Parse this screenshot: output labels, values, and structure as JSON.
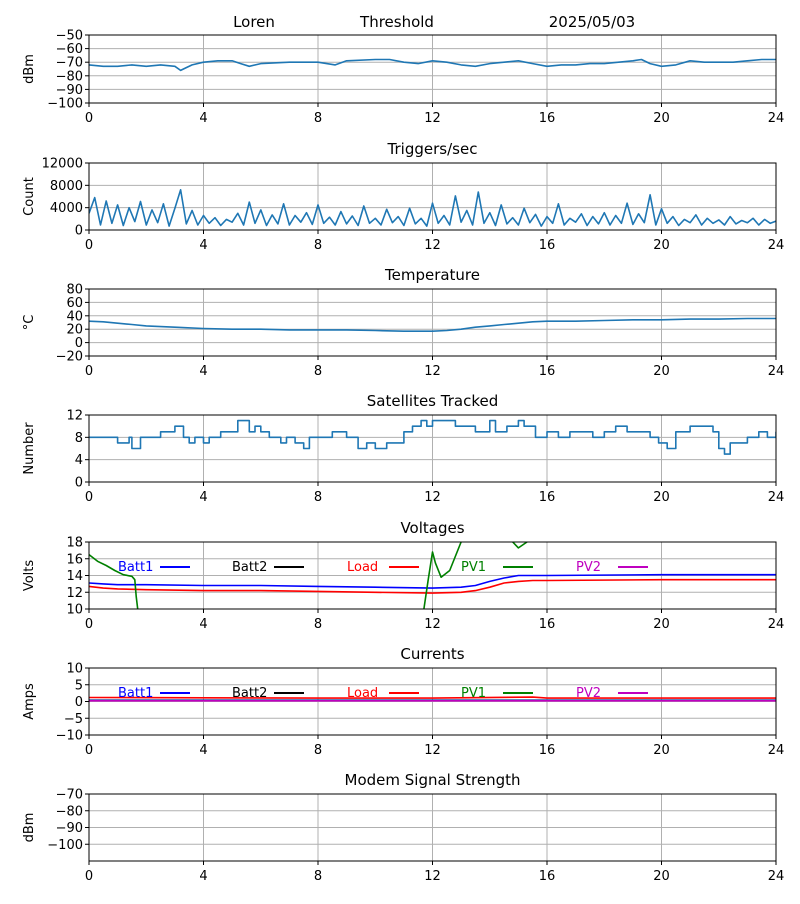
{
  "header": {
    "station": "Loren",
    "mode": "Threshold",
    "date": "2025/05/03"
  },
  "chart_data": [
    {
      "id": "rssi",
      "type": "line",
      "title": "",
      "ylabel": "dBm",
      "xlim": [
        0,
        24
      ],
      "ylim": [
        -100,
        -50
      ],
      "xticks": [
        0,
        4,
        8,
        12,
        16,
        20,
        24
      ],
      "yticks": [
        -100,
        -90,
        -80,
        -70,
        -60,
        -50
      ],
      "grid": true,
      "series": [
        {
          "color": "#1f77b4",
          "x": [
            0,
            0.5,
            1,
            1.5,
            2,
            2.5,
            3,
            3.2,
            3.4,
            3.6,
            4,
            4.5,
            5,
            5.3,
            5.6,
            6,
            7,
            8,
            8.6,
            9,
            10,
            10.5,
            11,
            11.5,
            12,
            12.5,
            13,
            13.5,
            14,
            14.5,
            15,
            15.5,
            16,
            16.5,
            17,
            17.5,
            18,
            18.5,
            19,
            19.3,
            19.6,
            20,
            20.5,
            21,
            21.5,
            22,
            22.5,
            23,
            23.5,
            24
          ],
          "y": [
            -72,
            -73,
            -73,
            -72,
            -73,
            -72,
            -73,
            -76,
            -74,
            -72,
            -70,
            -69,
            -69,
            -71,
            -73,
            -71,
            -70,
            -70,
            -72,
            -69,
            -68,
            -68,
            -70,
            -71,
            -69,
            -70,
            -72,
            -73,
            -71,
            -70,
            -69,
            -71,
            -73,
            -72,
            -72,
            -71,
            -71,
            -70,
            -69,
            -68,
            -71,
            -73,
            -72,
            -69,
            -70,
            -70,
            -70,
            -69,
            -68,
            -68
          ]
        }
      ]
    },
    {
      "id": "triggers",
      "type": "line",
      "title": "Triggers/sec",
      "ylabel": "Count",
      "xlim": [
        0,
        24
      ],
      "ylim": [
        0,
        12000
      ],
      "xticks": [
        0,
        4,
        8,
        12,
        16,
        20,
        24
      ],
      "yticks": [
        0,
        4000,
        8000,
        12000
      ],
      "grid": true,
      "series": [
        {
          "color": "#1f77b4",
          "x": [
            0,
            0.2,
            0.4,
            0.6,
            0.8,
            1.0,
            1.2,
            1.4,
            1.6,
            1.8,
            2.0,
            2.2,
            2.4,
            2.6,
            2.8,
            3.0,
            3.2,
            3.4,
            3.6,
            3.8,
            4.0,
            4.2,
            4.4,
            4.6,
            4.8,
            5.0,
            5.2,
            5.4,
            5.6,
            5.8,
            6.0,
            6.2,
            6.4,
            6.6,
            6.8,
            7.0,
            7.2,
            7.4,
            7.6,
            7.8,
            8.0,
            8.2,
            8.4,
            8.6,
            8.8,
            9.0,
            9.2,
            9.4,
            9.6,
            9.8,
            10.0,
            10.2,
            10.4,
            10.6,
            10.8,
            11.0,
            11.2,
            11.4,
            11.6,
            11.8,
            12.0,
            12.2,
            12.4,
            12.6,
            12.8,
            13.0,
            13.2,
            13.4,
            13.6,
            13.8,
            14.0,
            14.2,
            14.4,
            14.6,
            14.8,
            15.0,
            15.2,
            15.4,
            15.6,
            15.8,
            16.0,
            16.2,
            16.4,
            16.6,
            16.8,
            17.0,
            17.2,
            17.4,
            17.6,
            17.8,
            18.0,
            18.2,
            18.4,
            18.6,
            18.8,
            19.0,
            19.2,
            19.4,
            19.6,
            19.8,
            20.0,
            20.2,
            20.4,
            20.6,
            20.8,
            21.0,
            21.2,
            21.4,
            21.6,
            21.8,
            22.0,
            22.2,
            22.4,
            22.6,
            22.8,
            23.0,
            23.2,
            23.4,
            23.6,
            23.8,
            24.0
          ],
          "y": [
            3000,
            5800,
            900,
            5200,
            1200,
            4500,
            800,
            4000,
            1500,
            5100,
            900,
            3600,
            1300,
            4700,
            700,
            3900,
            7200,
            1100,
            3500,
            900,
            2600,
            1200,
            2200,
            800,
            1900,
            1400,
            3000,
            900,
            5000,
            1200,
            3600,
            800,
            2700,
            1100,
            4700,
            900,
            2600,
            1400,
            3100,
            1000,
            4500,
            1200,
            2300,
            900,
            3300,
            1100,
            2500,
            800,
            4300,
            1200,
            2100,
            900,
            3700,
            1300,
            2400,
            800,
            3900,
            1100,
            2100,
            700,
            4800,
            1200,
            2600,
            900,
            6100,
            1400,
            3500,
            900,
            6800,
            1200,
            3100,
            800,
            4500,
            1100,
            2200,
            900,
            3900,
            1300,
            2800,
            700,
            2400,
            1200,
            4700,
            900,
            2100,
            1400,
            2900,
            800,
            2400,
            1100,
            3100,
            900,
            2600,
            1200,
            4800,
            1000,
            2900,
            1300,
            6300,
            900,
            3800,
            1200,
            2400,
            800,
            1900,
            1300,
            2700,
            900,
            2100,
            1200,
            1800,
            900,
            2400,
            1100,
            1700,
            1300,
            2100,
            900,
            1900,
            1200,
            1600
          ]
        }
      ]
    },
    {
      "id": "temperature",
      "type": "line",
      "title": "Temperature",
      "ylabel": "°C",
      "xlim": [
        0,
        24
      ],
      "ylim": [
        -20,
        80
      ],
      "xticks": [
        0,
        4,
        8,
        12,
        16,
        20,
        24
      ],
      "yticks": [
        -20,
        0,
        20,
        40,
        60,
        80
      ],
      "grid": true,
      "series": [
        {
          "color": "#1f77b4",
          "x": [
            0,
            0.5,
            1,
            1.5,
            2,
            3,
            4,
            5,
            6,
            7,
            8,
            9,
            10,
            11,
            12,
            12.5,
            13,
            13.5,
            14,
            14.5,
            15,
            15.5,
            16,
            17,
            18,
            19,
            20,
            21,
            22,
            23,
            24
          ],
          "y": [
            32,
            31,
            29,
            27,
            25,
            23,
            21,
            20,
            20,
            19,
            19,
            19,
            18,
            17,
            17,
            18,
            20,
            23,
            25,
            27,
            29,
            31,
            32,
            32,
            33,
            34,
            34,
            35,
            35,
            36,
            36
          ]
        }
      ]
    },
    {
      "id": "satellites",
      "type": "line",
      "title": "Satellites Tracked",
      "ylabel": "Number",
      "xlim": [
        0,
        24
      ],
      "ylim": [
        0,
        12
      ],
      "xticks": [
        0,
        4,
        8,
        12,
        16,
        20,
        24
      ],
      "yticks": [
        0,
        4,
        8,
        12
      ],
      "grid": true,
      "series": [
        {
          "color": "#1f77b4",
          "step": true,
          "x": [
            0,
            0.5,
            1.0,
            1.3,
            1.4,
            1.5,
            1.8,
            2.2,
            2.5,
            2.8,
            3.0,
            3.3,
            3.5,
            3.7,
            4.0,
            4.2,
            4.6,
            5.0,
            5.2,
            5.6,
            5.8,
            6.0,
            6.3,
            6.7,
            6.9,
            7.2,
            7.5,
            7.7,
            8.0,
            8.5,
            9.0,
            9.4,
            9.7,
            10.0,
            10.4,
            10.8,
            11.0,
            11.3,
            11.6,
            11.8,
            12.0,
            12.5,
            12.8,
            13.0,
            13.5,
            14.0,
            14.2,
            14.6,
            15.0,
            15.2,
            15.6,
            16.0,
            16.4,
            16.8,
            17.2,
            17.6,
            18.0,
            18.4,
            18.8,
            19.2,
            19.6,
            19.9,
            20.2,
            20.5,
            21.0,
            21.4,
            21.8,
            22.0,
            22.2,
            22.4,
            22.6,
            23.0,
            23.4,
            23.7,
            24.0
          ],
          "y": [
            8,
            8,
            7,
            7,
            8,
            6,
            8,
            8,
            9,
            9,
            10,
            8,
            7,
            8,
            7,
            8,
            9,
            9,
            11,
            9,
            10,
            9,
            8,
            7,
            8,
            7,
            6,
            8,
            8,
            9,
            8,
            6,
            7,
            6,
            7,
            7,
            9,
            10,
            11,
            10,
            11,
            11,
            10,
            10,
            9,
            11,
            9,
            10,
            11,
            10,
            8,
            9,
            8,
            9,
            9,
            8,
            9,
            10,
            9,
            9,
            8,
            7,
            6,
            9,
            10,
            10,
            9,
            6,
            5,
            7,
            7,
            8,
            9,
            8,
            9
          ]
        }
      ]
    },
    {
      "id": "voltages",
      "type": "line",
      "title": "Voltages",
      "ylabel": "Volts",
      "xlim": [
        0,
        24
      ],
      "ylim": [
        10,
        18
      ],
      "xticks": [
        0,
        4,
        8,
        12,
        16,
        20,
        24
      ],
      "yticks": [
        10,
        12,
        14,
        16,
        18
      ],
      "grid": true,
      "legend": [
        "Batt1",
        "Batt2",
        "Load",
        "PV1",
        "PV2"
      ],
      "series": [
        {
          "name": "Batt1",
          "color": "#0000ff",
          "x": [
            0,
            0.5,
            1,
            2,
            4,
            6,
            8,
            10,
            12,
            13,
            13.5,
            14,
            14.5,
            15,
            16,
            20,
            24
          ],
          "y": [
            13.1,
            13.0,
            12.9,
            12.9,
            12.8,
            12.8,
            12.7,
            12.6,
            12.5,
            12.6,
            12.8,
            13.3,
            13.7,
            14.0,
            14.0,
            14.1,
            14.1
          ]
        },
        {
          "name": "Batt2",
          "color": "#000000",
          "x": [],
          "y": []
        },
        {
          "name": "Load",
          "color": "#ff0000",
          "x": [
            0,
            0.5,
            1,
            2,
            4,
            6,
            8,
            10,
            12,
            13,
            13.5,
            14,
            14.5,
            15,
            15.5,
            16,
            20,
            24
          ],
          "y": [
            12.7,
            12.5,
            12.4,
            12.3,
            12.2,
            12.2,
            12.1,
            12.0,
            11.9,
            12.0,
            12.2,
            12.6,
            13.1,
            13.3,
            13.4,
            13.4,
            13.5,
            13.5
          ]
        },
        {
          "name": "PV1",
          "color": "#008000",
          "segments": [
            {
              "x": [
                0,
                0.3,
                0.6,
                0.9,
                1.2,
                1.5,
                1.6,
                1.65,
                1.7
              ],
              "y": [
                16.5,
                15.7,
                15.2,
                14.6,
                14.1,
                13.9,
                13.5,
                11.5,
                10
              ]
            },
            {
              "x": [
                11.7,
                11.85,
                12.0,
                12.1,
                12.3,
                12.6,
                13.0
              ],
              "y": [
                10,
                13.5,
                16.8,
                15.5,
                13.8,
                14.6,
                18
              ]
            },
            {
              "x": [
                14.8,
                15.0,
                15.3
              ],
              "y": [
                18,
                17.3,
                18
              ]
            }
          ]
        },
        {
          "name": "PV2",
          "color": "#bf00bf",
          "x": [],
          "y": []
        }
      ]
    },
    {
      "id": "currents",
      "type": "line",
      "title": "Currents",
      "ylabel": "Amps",
      "xlim": [
        0,
        24
      ],
      "ylim": [
        -10,
        10
      ],
      "xticks": [
        0,
        4,
        8,
        12,
        16,
        20,
        24
      ],
      "yticks": [
        -10,
        -5,
        0,
        5,
        10
      ],
      "grid": true,
      "legend": [
        "Batt1",
        "Batt2",
        "Load",
        "PV1",
        "PV2"
      ],
      "series": [
        {
          "name": "Batt1",
          "color": "#0000ff",
          "x": [
            0,
            24
          ],
          "y": [
            0.4,
            0.4
          ]
        },
        {
          "name": "Batt2",
          "color": "#000000",
          "x": [],
          "y": []
        },
        {
          "name": "Load",
          "color": "#ff0000",
          "x": [
            0,
            4,
            8,
            12,
            15.5,
            16,
            20,
            24
          ],
          "y": [
            1.2,
            1.1,
            1.0,
            1.0,
            1.3,
            1.0,
            1.0,
            1.0
          ]
        },
        {
          "name": "PV1",
          "color": "#008000",
          "x": [
            0,
            24
          ],
          "y": [
            0.3,
            0.3
          ]
        },
        {
          "name": "PV2",
          "color": "#bf00bf",
          "x": [
            0,
            24
          ],
          "y": [
            0.2,
            0.2
          ]
        }
      ]
    },
    {
      "id": "modem",
      "type": "line",
      "title": "Modem Signal Strength",
      "ylabel": "dBm",
      "xlim": [
        0,
        24
      ],
      "ylim": [
        -110,
        -70
      ],
      "xticks": [
        0,
        4,
        8,
        12,
        16,
        20,
        24
      ],
      "yticks": [
        -100,
        -90,
        -80,
        -70
      ],
      "grid": true,
      "series": []
    }
  ]
}
